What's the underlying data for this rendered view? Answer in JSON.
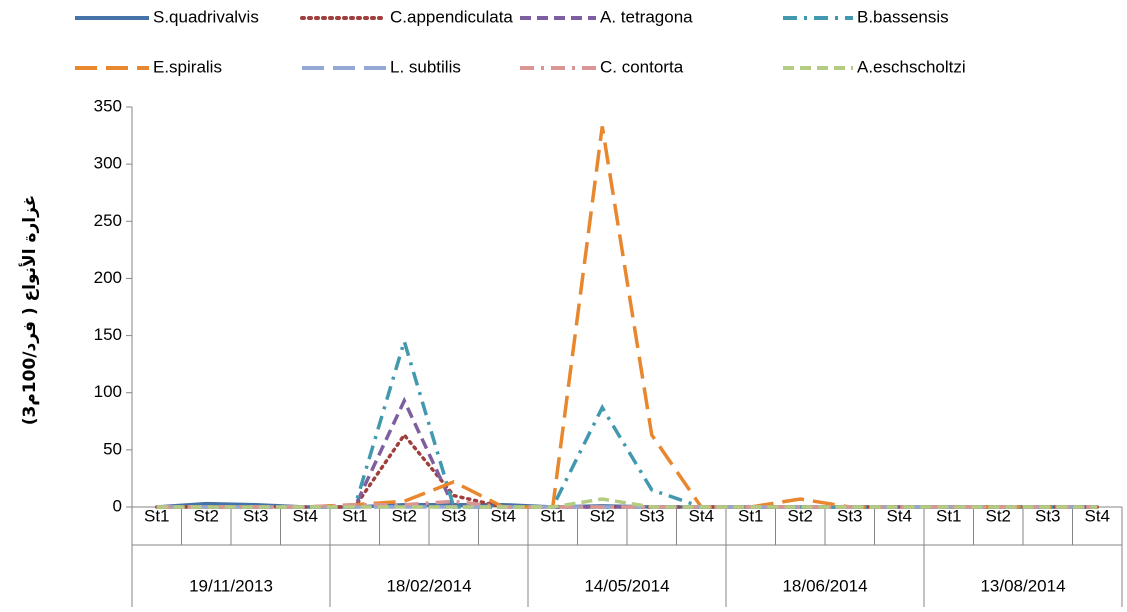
{
  "chart_data": {
    "type": "line",
    "y_label": "غزارة الأنواع ( فرد/100م3)",
    "categories": [
      "St1",
      "St2",
      "St3",
      "St4",
      "St1",
      "St2",
      "St3",
      "St4",
      "St1",
      "St2",
      "St3",
      "St4",
      "St1",
      "St2",
      "St3",
      "St4",
      "St1",
      "St2",
      "St3",
      "St4"
    ],
    "category_groups": [
      "19/11/2013",
      "18/02/2014",
      "14/05/2014",
      "18/06/2014",
      "13/08/2014"
    ],
    "ylim": [
      0,
      350
    ],
    "yticks": [
      0,
      50,
      100,
      150,
      200,
      250,
      300,
      350
    ],
    "series": [
      {
        "name": "S.quadrivalvis",
        "color": "#4572a7",
        "dash": "solid",
        "values": [
          0,
          3,
          2,
          0,
          0,
          2,
          2,
          2,
          0,
          1,
          0,
          0,
          0,
          0,
          0,
          0,
          0,
          0,
          0,
          0
        ]
      },
      {
        "name": "C.appendiculata",
        "color": "#a0403e",
        "dash": "dotted",
        "values": [
          0,
          0,
          0,
          0,
          0,
          63,
          10,
          0,
          0,
          0,
          0,
          0,
          0,
          0,
          0,
          0,
          0,
          0,
          0,
          0
        ]
      },
      {
        "name": "A. tetragona",
        "color": "#7d5fa0",
        "dash": "dashed",
        "values": [
          0,
          0,
          0,
          0,
          0,
          93,
          0,
          0,
          0,
          0,
          0,
          0,
          0,
          0,
          0,
          0,
          0,
          0,
          0,
          0
        ]
      },
      {
        "name": "B.bassensis",
        "color": "#4198af",
        "dash": "dashdot",
        "values": [
          0,
          0,
          0,
          0,
          0,
          145,
          0,
          0,
          0,
          87,
          15,
          0,
          0,
          0,
          0,
          0,
          0,
          0,
          0,
          0
        ]
      },
      {
        "name": "E.spiralis",
        "color": "#e8872d",
        "dash": "longdash",
        "values": [
          0,
          0,
          0,
          0,
          2,
          5,
          22,
          0,
          0,
          333,
          63,
          0,
          0,
          7,
          0,
          0,
          0,
          0,
          0,
          0
        ]
      },
      {
        "name": "L. subtilis",
        "color": "#93a9d3",
        "dash": "longdash",
        "values": [
          0,
          0,
          0,
          0,
          0,
          0,
          0,
          0,
          0,
          0,
          0,
          0,
          0,
          0,
          0,
          0,
          0,
          0,
          0,
          0
        ]
      },
      {
        "name": "C. contorta",
        "color": "#d99694",
        "dash": "dashdot",
        "values": [
          0,
          0,
          0,
          0,
          2,
          2,
          5,
          0,
          0,
          0,
          0,
          0,
          0,
          0,
          0,
          0,
          0,
          0,
          0,
          0
        ]
      },
      {
        "name": "A.eschscholtzi",
        "color": "#b3cc82",
        "dash": "dashed",
        "values": [
          0,
          0,
          0,
          0,
          0,
          0,
          0,
          0,
          0,
          7,
          0,
          0,
          0,
          0,
          0,
          0,
          0,
          0,
          0,
          0
        ]
      }
    ]
  }
}
